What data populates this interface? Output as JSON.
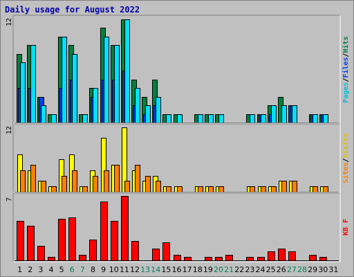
{
  "chart_data": {
    "type": "bar",
    "title": "Daily usage for August 2022",
    "categories": [
      "1",
      "2",
      "3",
      "4",
      "5",
      "6",
      "7",
      "8",
      "9",
      "10",
      "11",
      "12",
      "13",
      "14",
      "15",
      "16",
      "17",
      "18",
      "19",
      "20",
      "21",
      "22",
      "23",
      "24",
      "25",
      "26",
      "27",
      "28",
      "29",
      "30",
      "31"
    ],
    "weekend_days": [
      "6",
      "7",
      "13",
      "14",
      "20",
      "21",
      "27",
      "28"
    ],
    "panels": [
      {
        "name": "hits-files-pages",
        "ymax": 12,
        "ymax_label": "12",
        "series": [
          {
            "name": "Hits",
            "color": "#008040",
            "values": [
              8,
              9,
              3,
              1,
              10,
              9,
              1,
              4,
              11,
              9,
              12,
              5,
              3,
              5,
              1,
              1,
              0,
              1,
              1,
              1,
              0,
              0,
              1,
              1,
              2,
              3,
              2,
              0,
              1,
              1,
              0
            ]
          },
          {
            "name": "Files",
            "color": "#0040ff",
            "values": [
              4,
              4,
              3,
              0,
              4,
              5,
              0,
              3,
              5,
              5,
              6,
              2,
              1,
              2,
              0,
              0,
              0,
              0,
              0,
              0,
              0,
              0,
              0,
              1,
              1,
              0,
              2,
              0,
              1,
              1,
              0
            ]
          },
          {
            "name": "Pages",
            "color": "#00e0ff",
            "values": [
              7,
              9,
              2,
              1,
              10,
              8,
              1,
              4,
              10,
              9,
              12,
              4,
              2,
              3,
              1,
              1,
              0,
              1,
              1,
              1,
              0,
              0,
              1,
              1,
              2,
              2,
              2,
              0,
              1,
              1,
              0
            ]
          }
        ],
        "legend": [
          {
            "text": "Pages",
            "color": "#00c0e0"
          },
          {
            "text": "/",
            "color": "#000000"
          },
          {
            "text": "Files",
            "color": "#0040ff"
          },
          {
            "text": "/",
            "color": "#000000"
          },
          {
            "text": "Hits",
            "color": "#008040"
          }
        ]
      },
      {
        "name": "sites-visits",
        "ymax": 12,
        "ymax_label": "12",
        "series": [
          {
            "name": "Visits",
            "color": "#ffff00",
            "values": [
              7,
              4,
              2,
              1,
              6,
              7,
              1,
              4,
              10,
              5,
              12,
              4,
              2,
              3,
              1,
              1,
              0,
              1,
              1,
              1,
              0,
              0,
              1,
              1,
              1,
              2,
              2,
              0,
              1,
              1,
              0
            ]
          },
          {
            "name": "Sites",
            "color": "#ff8000",
            "values": [
              4,
              5,
              2,
              1,
              3,
              4,
              1,
              3,
              4,
              5,
              2,
              5,
              3,
              2,
              1,
              1,
              0,
              1,
              1,
              1,
              0,
              0,
              1,
              1,
              1,
              2,
              2,
              0,
              1,
              1,
              0
            ]
          }
        ],
        "legend": [
          {
            "text": "Sites",
            "color": "#ff8000"
          },
          {
            "text": "/",
            "color": "#000000"
          },
          {
            "text": "Visits",
            "color": "#e0c000"
          }
        ]
      },
      {
        "name": "kbytes",
        "ymax": 7,
        "ymax_label": "7",
        "series": [
          {
            "name": "KBytes",
            "color": "#ff0000",
            "values": [
              4.3,
              3.8,
              1.6,
              0.4,
              4.6,
              4.7,
              0.6,
              2.3,
              6.5,
              4.3,
              7.1,
              2.1,
              0,
              1.3,
              2.0,
              0.6,
              0.4,
              0,
              0.4,
              0.4,
              0.6,
              0,
              0.4,
              0.4,
              1.0,
              1.3,
              1.0,
              0,
              0.6,
              0.4,
              0
            ]
          }
        ],
        "legend": [
          {
            "text": "KB F",
            "color": "#ff0000"
          }
        ]
      }
    ],
    "grid": false,
    "legend_placement": "right"
  }
}
